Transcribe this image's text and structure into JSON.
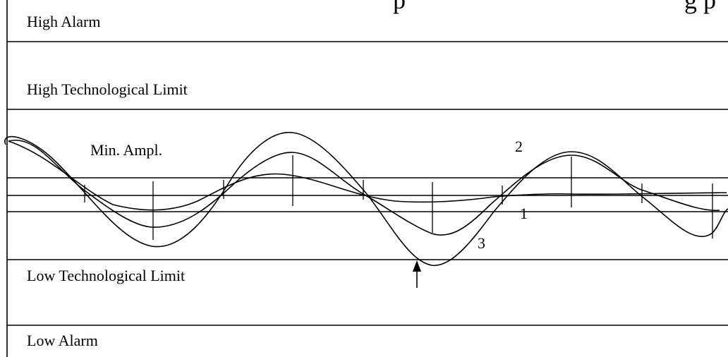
{
  "labels": {
    "high_alarm": "High Alarm",
    "high_tech_limit": "High Technological Limit",
    "min_ampl": "Min. Ampl.",
    "low_tech_limit": "Low Technological Limit",
    "low_alarm": "Low Alarm"
  },
  "curve_labels": {
    "curve_1": "1",
    "curve_2": "2",
    "curve_3": "3"
  },
  "cut_off_header_fragment": "p                                     g  p",
  "colors": {
    "ink": "#000000",
    "background": "#ffffff"
  }
}
